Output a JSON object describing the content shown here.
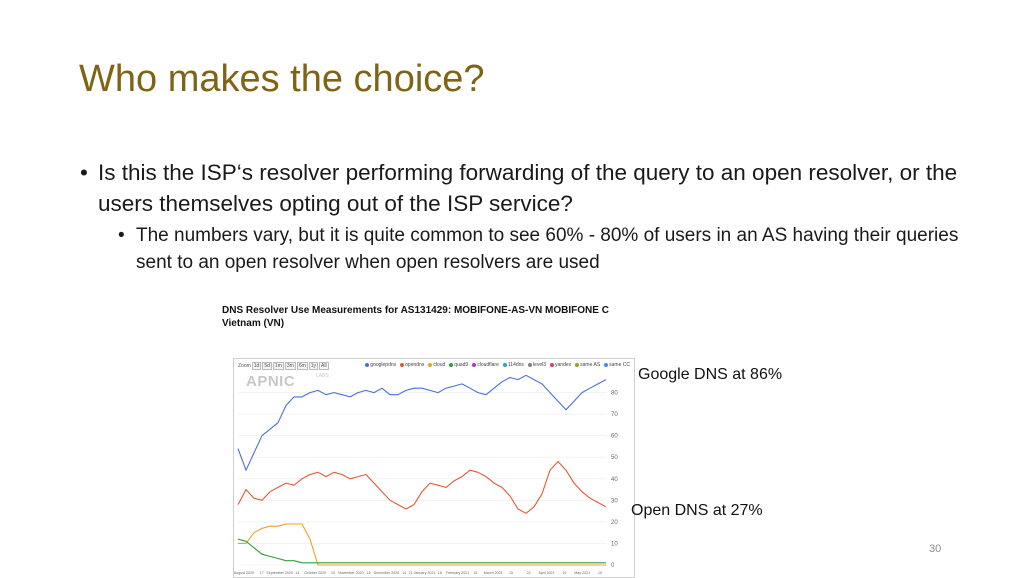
{
  "slide": {
    "title": "Who makes the choice?",
    "bullet1": "Is this the ISP‘s resolver performing forwarding of the query to an open resolver, or the users themselves opting out of the ISP service?",
    "bullet2": "The numbers vary, but it is quite common to see 60% - 80% of users in an AS having their queries sent to an open resolver when open resolvers are used",
    "bullet_glyph": "•",
    "annotation_google": "Google DNS at 86%",
    "annotation_open": "Open DNS at 27%",
    "page_number": "30"
  },
  "chart": {
    "title_line1": "DNS Resolver Use Measurements for AS131429: MOBIFONE-AS-VN MOBIFONE C",
    "title_line2": "Vietnam (VN)",
    "zoom_label": "Zoom",
    "zoom_buttons": [
      "1d",
      "5d",
      "1m",
      "3m",
      "6m",
      "1y",
      "All"
    ],
    "watermark": "APNIC",
    "watermark_sub": "LABS",
    "legend": [
      {
        "name": "googlepdns",
        "color": "#4a6fd8"
      },
      {
        "name": "opendns",
        "color": "#e05a3a"
      },
      {
        "name": "cloud",
        "color": "#f0a020"
      },
      {
        "name": "quad9",
        "color": "#2ea040"
      },
      {
        "name": "cloudflare",
        "color": "#9a40c0"
      },
      {
        "name": "114dns",
        "color": "#30a0c0"
      },
      {
        "name": "level3",
        "color": "#808080"
      },
      {
        "name": "yandex",
        "color": "#d04070"
      },
      {
        "name": "same AS",
        "color": "#a0a020"
      },
      {
        "name": "same CC",
        "color": "#4090f0"
      }
    ]
  },
  "chart_data": {
    "type": "line",
    "ylim": [
      0,
      90
    ],
    "y_ticks": [
      "0",
      "10",
      "20",
      "30",
      "40",
      "50",
      "60",
      "70",
      "80"
    ],
    "x_ticks": [
      "August 2020",
      "17",
      "September 2020",
      "14",
      "October 2020",
      "19",
      "November 2020",
      "16",
      "December 2020",
      "14",
      "21 January 2021",
      "18",
      "February 2021",
      "15",
      "March 2021",
      "15",
      "22",
      "April 2021",
      "19",
      "May 2021",
      "10"
    ],
    "series": [
      {
        "name": "googlepdns",
        "color": "#4a6fd8",
        "values": [
          54,
          44,
          52,
          60,
          63,
          66,
          74,
          78,
          78,
          80,
          81,
          79,
          80,
          79,
          78,
          80,
          81,
          80,
          82,
          79,
          79,
          81,
          82,
          82,
          81,
          80,
          82,
          83,
          84,
          82,
          80,
          79,
          82,
          85,
          87,
          86,
          88,
          86,
          84,
          80,
          76,
          72,
          76,
          80,
          82,
          84,
          86
        ]
      },
      {
        "name": "opendns",
        "color": "#e05a3a",
        "values": [
          28,
          35,
          31,
          30,
          34,
          36,
          38,
          37,
          40,
          42,
          43,
          41,
          43,
          42,
          40,
          41,
          42,
          38,
          34,
          30,
          28,
          26,
          28,
          34,
          38,
          37,
          36,
          39,
          41,
          44,
          43,
          41,
          38,
          36,
          32,
          26,
          24,
          27,
          33,
          44,
          48,
          44,
          38,
          34,
          31,
          29,
          27
        ]
      },
      {
        "name": "cloud",
        "color": "#f0a020",
        "values": [
          10,
          10,
          15,
          17,
          18,
          18,
          19,
          19,
          19,
          12,
          0,
          0,
          0,
          0,
          0,
          0,
          0,
          0,
          0,
          0,
          0,
          0,
          0,
          0,
          0,
          0,
          0,
          0,
          0,
          0,
          0,
          0,
          0,
          0,
          0,
          0,
          0,
          0,
          0,
          0,
          0,
          0,
          0,
          0,
          0,
          0,
          0
        ]
      },
      {
        "name": "quad9",
        "color": "#2ea040",
        "values": [
          12,
          11,
          8,
          5,
          4,
          3,
          2,
          2,
          1,
          1,
          1,
          1,
          1,
          1,
          1,
          1,
          1,
          1,
          1,
          1,
          1,
          1,
          1,
          1,
          1,
          1,
          1,
          1,
          1,
          1,
          1,
          1,
          1,
          1,
          1,
          1,
          1,
          1,
          1,
          1,
          1,
          1,
          1,
          1,
          1,
          1,
          1
        ]
      }
    ]
  }
}
